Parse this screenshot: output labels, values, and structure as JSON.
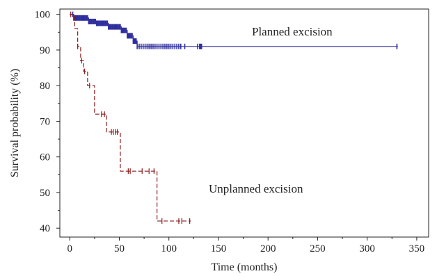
{
  "chart_data": {
    "type": "line",
    "xlabel": "Time (months)",
    "ylabel": "Survival probability (%)",
    "xlim": [
      -10,
      362
    ],
    "ylim": [
      37.5,
      101.5
    ],
    "xticks": [
      0,
      50,
      100,
      150,
      200,
      250,
      300,
      350
    ],
    "yticks": [
      40,
      50,
      60,
      70,
      80,
      90,
      100
    ],
    "grid": false,
    "legend": "none",
    "series": [
      {
        "name": "Planned excision",
        "color": "#2e2e9e",
        "dash": "solid",
        "x": [
          0,
          3,
          4,
          17,
          19,
          25,
          27,
          36,
          39,
          46,
          52,
          55,
          58,
          61,
          64,
          67,
          68,
          331
        ],
        "y": [
          100,
          100,
          99,
          99,
          98,
          98,
          97.5,
          97.5,
          96.5,
          96.5,
          95.5,
          95.5,
          94,
          94,
          92.5,
          92.5,
          91,
          91
        ],
        "censored_x": [
          3,
          4,
          5,
          6,
          7,
          8,
          9,
          10,
          11,
          12,
          13,
          14,
          15,
          16,
          17,
          18,
          19,
          20,
          21,
          22,
          23,
          24,
          25,
          26,
          27,
          28,
          29,
          30,
          31,
          32,
          33,
          34,
          35,
          36,
          37,
          38,
          39,
          40,
          41,
          42,
          43,
          44,
          45,
          46,
          47,
          48,
          49,
          50,
          51,
          52,
          53,
          54,
          55,
          56,
          57,
          58,
          59,
          60,
          61,
          62,
          63,
          64,
          65,
          66,
          67,
          68,
          70,
          72,
          74,
          76,
          78,
          80,
          82,
          84,
          86,
          88,
          90,
          92,
          94,
          96,
          98,
          100,
          102,
          104,
          106,
          108,
          110,
          112,
          116,
          129,
          131,
          132,
          133,
          330
        ],
        "label": "Planned excision"
      },
      {
        "name": "Unplanned excision",
        "color": "#8b1a1a",
        "dash": "dashed",
        "x": [
          0,
          4,
          5,
          7,
          8,
          10,
          11,
          13,
          14,
          18,
          24,
          25,
          30,
          36,
          37,
          41,
          50,
          51,
          87,
          88,
          122
        ],
        "y": [
          100,
          100,
          96,
          96,
          91,
          91,
          87,
          87,
          84,
          80,
          80,
          72,
          72,
          72,
          67,
          67,
          67,
          56,
          56,
          42,
          42
        ],
        "censored_x": [
          1,
          8,
          12,
          15,
          20,
          32,
          35,
          42,
          44,
          46,
          48,
          59,
          61,
          73,
          80,
          85,
          93,
          110,
          113,
          121
        ],
        "label": "Unplanned excision"
      }
    ],
    "annotations": [
      "Planned excision",
      "Unplanned excision"
    ]
  }
}
